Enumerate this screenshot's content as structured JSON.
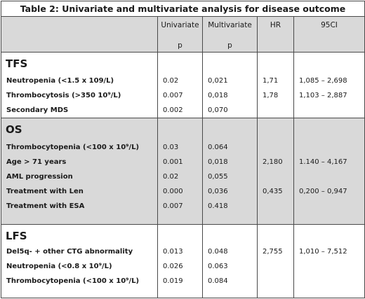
{
  "title": "Table 2: Univariate and multivariate analysis for disease outcome",
  "header": {
    "univariate": "Univariate",
    "univariate_sub": "p",
    "multivariate": "Multivariate",
    "multivariate_sub": "p",
    "hr": "HR",
    "ci": "95CI"
  },
  "sections": [
    {
      "name": "TFS",
      "rows": [
        {
          "label": "Neutropenia (<1.5 x 109/L)",
          "uni": "0.02",
          "multi": "0,021",
          "hr": "1,71",
          "ci": "1,085 – 2,698"
        },
        {
          "label": "Thrombocytosis (>350 10⁹/L)",
          "uni": "0.007",
          "multi": "0,018",
          "hr": "1,78",
          "ci": "1,103 – 2,887"
        },
        {
          "label": "Secondary MDS",
          "uni": "0.002",
          "multi": "0,070",
          "hr": "",
          "ci": ""
        }
      ]
    },
    {
      "name": "OS",
      "rows": [
        {
          "label": "Thrombocytopenia (<100 x 10⁹/L)",
          "uni": "0.03",
          "multi": "0.064",
          "hr": "",
          "ci": ""
        },
        {
          "label": "Age > 71 years",
          "uni": "0.001",
          "multi": "0,018",
          "hr": "2,180",
          "ci": "1.140 – 4,167"
        },
        {
          "label": "AML progression",
          "uni": "0.02",
          "multi": "0,055",
          "hr": "",
          "ci": ""
        },
        {
          "label": "Treatment with Len",
          "uni": "0.000",
          "multi": "0,036",
          "hr": "0,435",
          "ci": "0,200 – 0,947"
        },
        {
          "label": "Treatment with ESA",
          "uni": "0.007",
          "multi": "0.418",
          "hr": "",
          "ci": ""
        }
      ]
    },
    {
      "name": "LFS",
      "rows": [
        {
          "label": "Del5q-  + other CTG abnormality",
          "uni": "0.013",
          "multi": "0.048",
          "hr": "2,755",
          "ci": "1,010 – 7,512"
        },
        {
          "label": "Neutropenia (<0.8 x 10⁹/L)",
          "uni": "0.026",
          "multi": "0.063",
          "hr": "",
          "ci": ""
        },
        {
          "label": "Thrombocytopenia (<100 x 10⁹/L)",
          "uni": "0.019",
          "multi": "0.084",
          "hr": "",
          "ci": ""
        }
      ]
    }
  ]
}
